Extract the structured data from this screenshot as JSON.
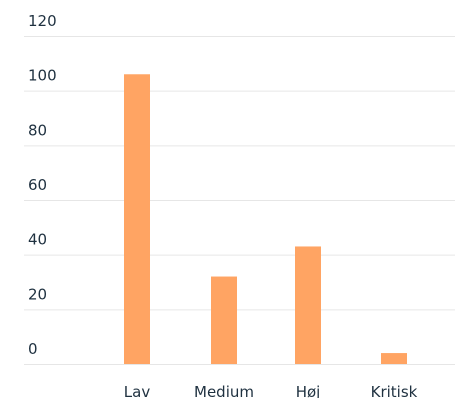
{
  "chart_data": {
    "type": "bar",
    "title": "",
    "xlabel": "",
    "ylabel": "",
    "categories": [
      "Lav",
      "Medium",
      "Høj",
      "Kritisk"
    ],
    "values": [
      106,
      32,
      43,
      4
    ],
    "ylim": [
      0,
      120
    ],
    "yticks": [
      "0",
      "20",
      "40",
      "60",
      "80",
      "100",
      "120"
    ],
    "grid": "horizontal",
    "legend": "none",
    "colors": {
      "bar": "#FFA463",
      "grid": "#E6E6E6",
      "tick_text": "#1F3140"
    }
  }
}
